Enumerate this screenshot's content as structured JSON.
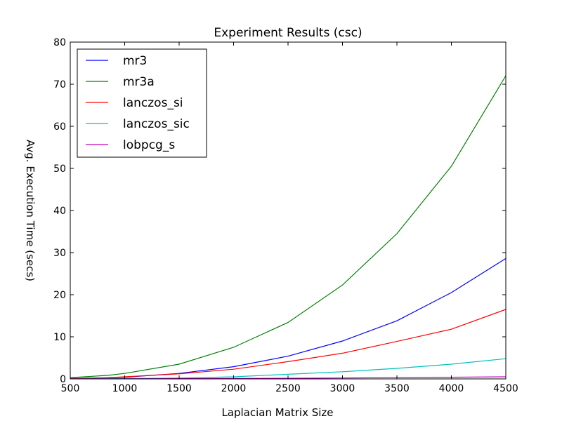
{
  "chart_data": {
    "type": "line",
    "title": "Experiment Results (csc)",
    "xlabel": "Laplacian Matrix Size",
    "ylabel": "Avg. Execution Time (secs)",
    "xlim": [
      500,
      4500
    ],
    "ylim": [
      0,
      80
    ],
    "xticks": [
      500,
      1000,
      1500,
      2000,
      2500,
      3000,
      3500,
      4000,
      4500
    ],
    "yticks": [
      0,
      10,
      20,
      30,
      40,
      50,
      60,
      70,
      80
    ],
    "grid": false,
    "legend_position": "top-left",
    "x": [
      500,
      850,
      1000,
      1500,
      2000,
      2500,
      3000,
      3500,
      4000,
      4500
    ],
    "series": [
      {
        "name": "mr3",
        "color": "#0000ff",
        "values": [
          0.1,
          0.25,
          0.4,
          1.3,
          2.9,
          5.4,
          9.0,
          13.8,
          20.5,
          28.6
        ]
      },
      {
        "name": "mr3a",
        "color": "#008000",
        "values": [
          0.3,
          0.85,
          1.3,
          3.5,
          7.5,
          13.4,
          22.3,
          34.5,
          50.5,
          72.0
        ]
      },
      {
        "name": "lanczos_si",
        "color": "#ff0000",
        "values": [
          0.1,
          0.3,
          0.5,
          1.2,
          2.3,
          4.1,
          6.1,
          8.9,
          11.8,
          16.5
        ]
      },
      {
        "name": "lanczos_sic",
        "color": "#00bfbf",
        "values": [
          0.02,
          0.05,
          0.08,
          0.2,
          0.5,
          1.1,
          1.7,
          2.5,
          3.5,
          4.8
        ]
      },
      {
        "name": "lobpcg_s",
        "color": "#bf00bf",
        "values": [
          0.01,
          0.02,
          0.03,
          0.06,
          0.1,
          0.15,
          0.22,
          0.3,
          0.4,
          0.5
        ]
      }
    ]
  }
}
